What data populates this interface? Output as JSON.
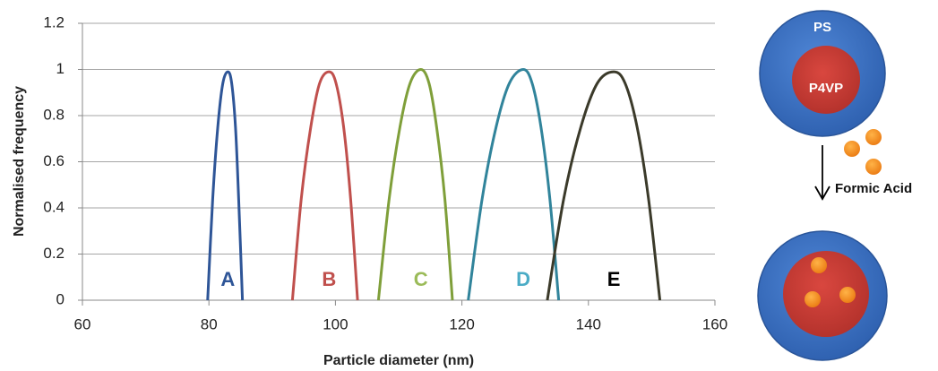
{
  "chart_data": {
    "type": "line",
    "x_label": "Particle diameter (nm)",
    "y_label": "Normalised frequency",
    "xlim": [
      60,
      160
    ],
    "xticks": [
      60,
      80,
      100,
      120,
      140,
      160
    ],
    "ylim": [
      0,
      1.2
    ],
    "yticks": [
      0,
      0.2,
      0.4,
      0.6,
      0.8,
      1,
      1.2
    ],
    "grid": true,
    "series": [
      {
        "name": "A",
        "color": "#2e5597",
        "label_color": "#2e5597",
        "x": [
          79.8,
          80.6,
          81.4,
          82.2,
          83,
          83.6,
          84.2,
          84.7,
          85.3
        ],
        "values": [
          0,
          0.44,
          0.75,
          0.94,
          0.99,
          0.94,
          0.75,
          0.44,
          0
        ]
      },
      {
        "name": "B",
        "color": "#c0504d",
        "label_color": "#c0504d",
        "x": [
          93.2,
          94.6,
          96.1,
          97.5,
          99,
          100.1,
          101.3,
          102.4,
          103.5
        ],
        "values": [
          0,
          0.44,
          0.75,
          0.94,
          0.99,
          0.94,
          0.75,
          0.44,
          0
        ]
      },
      {
        "name": "C",
        "color": "#7f9f3a",
        "label_color": "#9bbb59",
        "x": [
          106.8,
          108.5,
          110.2,
          111.8,
          113.5,
          114.8,
          116,
          117.3,
          118.5
        ],
        "values": [
          0,
          0.44,
          0.75,
          0.94,
          1,
          0.94,
          0.75,
          0.44,
          0
        ]
      },
      {
        "name": "D",
        "color": "#31849b",
        "label_color": "#4bacc6",
        "x": [
          121,
          123.2,
          125.4,
          127.5,
          129.7,
          131.1,
          132.5,
          133.9,
          135.3
        ],
        "values": [
          0,
          0.44,
          0.75,
          0.94,
          1,
          0.94,
          0.75,
          0.44,
          0
        ]
      },
      {
        "name": "E",
        "color": "#3b3a2a",
        "label_color": "#000000",
        "x": [
          133.5,
          136.1,
          138.8,
          141.4,
          144,
          145.8,
          147.7,
          149.5,
          151.3
        ],
        "values": [
          0,
          0.44,
          0.75,
          0.94,
          0.99,
          0.94,
          0.75,
          0.44,
          0
        ]
      }
    ]
  },
  "diagram": {
    "shell_label": "PS",
    "core_label": "P4VP",
    "reagent_label": "Formic Acid"
  }
}
